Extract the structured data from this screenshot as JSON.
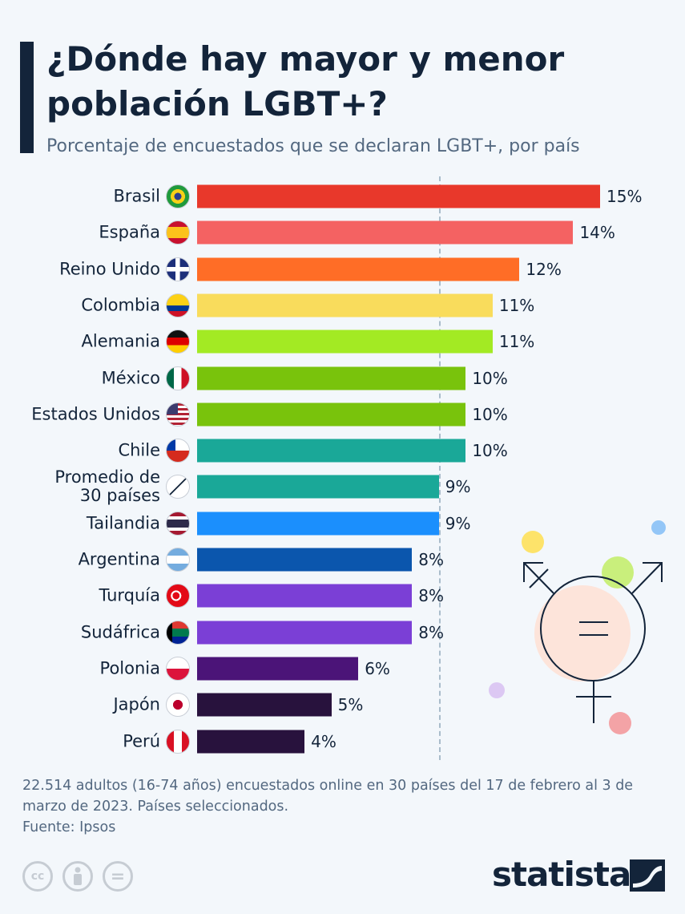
{
  "header": {
    "title": "¿Dónde hay mayor y menor población LGBT+?",
    "subtitle": "Porcentaje de encuestados que se declaran LGBT+, por país"
  },
  "chart_data": {
    "type": "bar",
    "orientation": "horizontal",
    "unit": "%",
    "categories": [
      "Brasil",
      "España",
      "Reino Unido",
      "Colombia",
      "Alemania",
      "México",
      "Estados Unidos",
      "Chile",
      "Promedio de 30 países",
      "Tailandia",
      "Argentina",
      "Turquía",
      "Sudáfrica",
      "Polonia",
      "Japón",
      "Perú"
    ],
    "values": [
      15,
      14,
      12,
      11,
      11,
      10,
      10,
      10,
      9,
      9,
      8,
      8,
      8,
      6,
      5,
      4
    ],
    "data_labels": [
      "15%",
      "14%",
      "12%",
      "11%",
      "11%",
      "10%",
      "10%",
      "10%",
      "9%",
      "9%",
      "8%",
      "8%",
      "8%",
      "6%",
      "5%",
      "4%"
    ],
    "colors": [
      "#e8382b",
      "#f46262",
      "#ff6d26",
      "#f9dc5c",
      "#a3ea23",
      "#79c30c",
      "#79c30c",
      "#1aa898",
      "#1aa898",
      "#1b8ffd",
      "#0b56ad",
      "#7b3fd6",
      "#7b3fd6",
      "#4b1478",
      "#28123d",
      "#28123d"
    ],
    "flags": [
      "brazil-flag-icon",
      "spain-flag-icon",
      "uk-flag-icon",
      "colombia-flag-icon",
      "germany-flag-icon",
      "mexico-flag-icon",
      "usa-flag-icon",
      "chile-flag-icon",
      "average-empty-set-icon",
      "thailand-flag-icon",
      "argentina-flag-icon",
      "turkey-flag-icon",
      "south-africa-flag-icon",
      "poland-flag-icon",
      "japan-flag-icon",
      "peru-flag-icon"
    ],
    "reference_line": {
      "value": 9,
      "style": "dashed"
    },
    "xlim": [
      0,
      15
    ],
    "grid": false,
    "legend": "none"
  },
  "footer": {
    "note": "22.514 adultos (16-74 años) encuestados online en 30 países del 17 de febrero al 3 de marzo de 2023. Países seleccionados.",
    "source": "Fuente: Ipsos",
    "license_icons": [
      "cc-icon",
      "by-icon",
      "nd-icon"
    ],
    "cc_text": "cc",
    "nd_text": "=",
    "logo": "statista"
  }
}
